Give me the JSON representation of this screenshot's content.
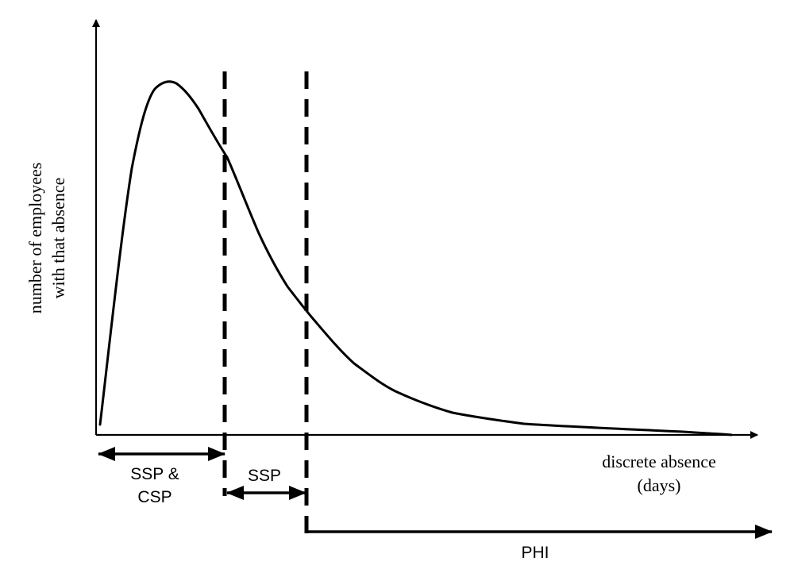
{
  "axes": {
    "y_label_line1": "number of employees",
    "y_label_line2": "with that absence",
    "x_label_line1": "discrete absence",
    "x_label_line2": "(days)"
  },
  "ranges": {
    "ssp_csp_line1": "SSP &",
    "ssp_csp_line2": "CSP",
    "ssp": "SSP",
    "phi": "PHI"
  },
  "colors": {
    "ink": "#000000",
    "background": "#ffffff"
  }
}
